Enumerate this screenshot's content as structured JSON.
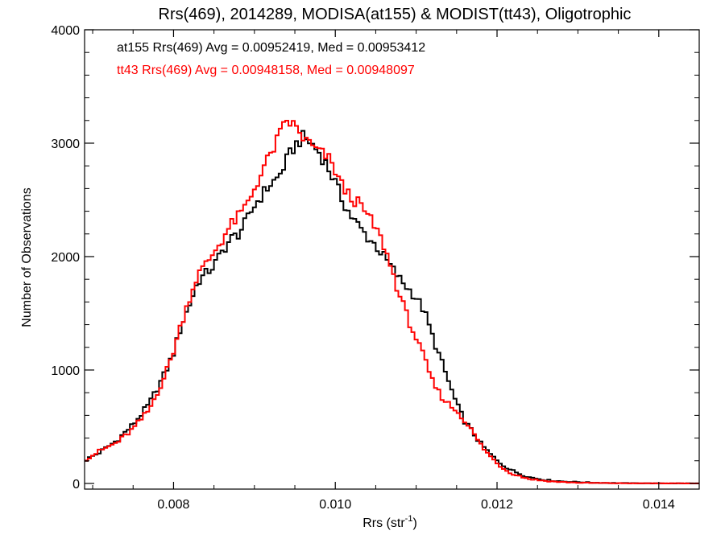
{
  "chart_data": {
    "type": "line",
    "title": "Rrs(469), 2014289, MODISA(at155) & MODIST(tt43), Oligotrophic",
    "xlabel_main": "Rrs (str",
    "xlabel_sup": "-1",
    "xlabel_close": ")",
    "ylabel": "Number of Observations",
    "xlim": [
      0.0069,
      0.0145
    ],
    "ylim": [
      -50,
      4000
    ],
    "xticks": [
      0.008,
      0.01,
      0.012,
      0.014
    ],
    "xtick_labels": [
      "0.008",
      "0.010",
      "0.012",
      "0.014"
    ],
    "yticks": [
      0,
      1000,
      2000,
      3000,
      4000
    ],
    "ytick_labels": [
      "0",
      "1000",
      "2000",
      "3000",
      "4000"
    ],
    "grid": false,
    "legend_position": "top-left",
    "bin_width": 4e-05,
    "series": [
      {
        "name": "at155 Rrs(469) Avg = 0.00952419, Med = 0.00953412",
        "color": "#000000",
        "points": [
          [
            0.0069,
            200
          ],
          [
            0.0071,
            280
          ],
          [
            0.0073,
            380
          ],
          [
            0.0075,
            520
          ],
          [
            0.0077,
            700
          ],
          [
            0.0079,
            980
          ],
          [
            0.008,
            1150
          ],
          [
            0.0081,
            1400
          ],
          [
            0.0082,
            1580
          ],
          [
            0.0083,
            1780
          ],
          [
            0.0084,
            1850
          ],
          [
            0.0085,
            1920
          ],
          [
            0.0086,
            2040
          ],
          [
            0.0087,
            2150
          ],
          [
            0.0088,
            2200
          ],
          [
            0.0089,
            2310
          ],
          [
            0.009,
            2450
          ],
          [
            0.0091,
            2550
          ],
          [
            0.0092,
            2640
          ],
          [
            0.0093,
            2700
          ],
          [
            0.0094,
            2850
          ],
          [
            0.0095,
            2980
          ],
          [
            0.0096,
            3050
          ],
          [
            0.0097,
            3000
          ],
          [
            0.0098,
            2920
          ],
          [
            0.0099,
            2800
          ],
          [
            0.01,
            2650
          ],
          [
            0.0101,
            2480
          ],
          [
            0.0102,
            2350
          ],
          [
            0.0103,
            2260
          ],
          [
            0.0104,
            2170
          ],
          [
            0.0105,
            2100
          ],
          [
            0.0106,
            2000
          ],
          [
            0.0107,
            1900
          ],
          [
            0.0108,
            1800
          ],
          [
            0.0109,
            1720
          ],
          [
            0.011,
            1640
          ],
          [
            0.0111,
            1520
          ],
          [
            0.0112,
            1300
          ],
          [
            0.0113,
            1100
          ],
          [
            0.0114,
            900
          ],
          [
            0.0115,
            700
          ],
          [
            0.0116,
            550
          ],
          [
            0.0117,
            450
          ],
          [
            0.0118,
            350
          ],
          [
            0.0119,
            270
          ],
          [
            0.012,
            200
          ],
          [
            0.0121,
            150
          ],
          [
            0.0122,
            110
          ],
          [
            0.0123,
            80
          ],
          [
            0.0124,
            55
          ],
          [
            0.0126,
            30
          ],
          [
            0.0128,
            18
          ],
          [
            0.013,
            12
          ],
          [
            0.0132,
            6
          ],
          [
            0.0135,
            3
          ],
          [
            0.0138,
            1
          ],
          [
            0.0145,
            0
          ]
        ]
      },
      {
        "name": "tt43 Rrs(469) Avg = 0.00948158, Med = 0.00948097",
        "color": "#ff0000",
        "points": [
          [
            0.0069,
            210
          ],
          [
            0.0071,
            290
          ],
          [
            0.0073,
            360
          ],
          [
            0.0075,
            480
          ],
          [
            0.0077,
            650
          ],
          [
            0.0079,
            960
          ],
          [
            0.008,
            1170
          ],
          [
            0.0081,
            1420
          ],
          [
            0.0082,
            1640
          ],
          [
            0.0083,
            1840
          ],
          [
            0.0084,
            1930
          ],
          [
            0.0085,
            2040
          ],
          [
            0.0086,
            2150
          ],
          [
            0.0087,
            2270
          ],
          [
            0.0088,
            2350
          ],
          [
            0.0089,
            2450
          ],
          [
            0.009,
            2600
          ],
          [
            0.0091,
            2760
          ],
          [
            0.0092,
            2900
          ],
          [
            0.0093,
            3050
          ],
          [
            0.0094,
            3200
          ],
          [
            0.0095,
            3150
          ],
          [
            0.0096,
            3050
          ],
          [
            0.0097,
            2980
          ],
          [
            0.0098,
            2920
          ],
          [
            0.0099,
            2880
          ],
          [
            0.01,
            2760
          ],
          [
            0.0101,
            2600
          ],
          [
            0.0102,
            2520
          ],
          [
            0.0103,
            2460
          ],
          [
            0.0104,
            2360
          ],
          [
            0.0105,
            2250
          ],
          [
            0.0106,
            2100
          ],
          [
            0.0107,
            1880
          ],
          [
            0.0108,
            1650
          ],
          [
            0.0109,
            1450
          ],
          [
            0.011,
            1280
          ],
          [
            0.0111,
            1100
          ],
          [
            0.0112,
            900
          ],
          [
            0.0113,
            780
          ],
          [
            0.0114,
            700
          ],
          [
            0.0115,
            640
          ],
          [
            0.0116,
            560
          ],
          [
            0.0117,
            450
          ],
          [
            0.0118,
            340
          ],
          [
            0.0119,
            250
          ],
          [
            0.012,
            180
          ],
          [
            0.0121,
            120
          ],
          [
            0.0122,
            85
          ],
          [
            0.0123,
            60
          ],
          [
            0.0124,
            40
          ],
          [
            0.0126,
            22
          ],
          [
            0.0128,
            12
          ],
          [
            0.013,
            7
          ],
          [
            0.0132,
            4
          ],
          [
            0.0135,
            2
          ],
          [
            0.0138,
            1
          ],
          [
            0.0145,
            0
          ]
        ]
      }
    ]
  }
}
